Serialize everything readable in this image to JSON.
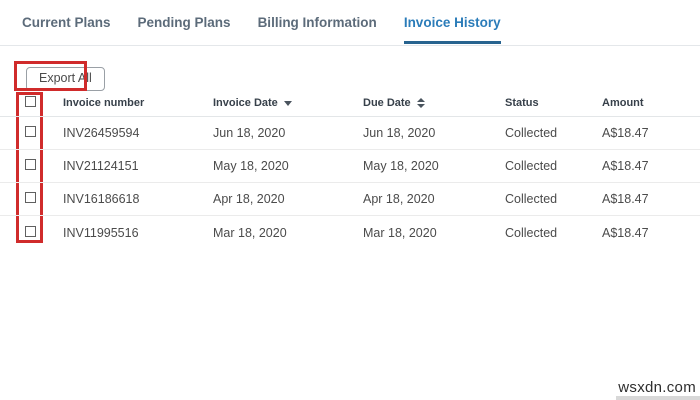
{
  "tabs": {
    "items": [
      {
        "label": "Current Plans",
        "active": false
      },
      {
        "label": "Pending Plans",
        "active": false
      },
      {
        "label": "Billing Information",
        "active": false
      },
      {
        "label": "Invoice History",
        "active": true
      }
    ]
  },
  "toolbar": {
    "export_all_label": "Export All"
  },
  "invoice_table": {
    "headers": {
      "invoice_number": "Invoice number",
      "invoice_date": "Invoice Date",
      "due_date": "Due Date",
      "status": "Status",
      "amount": "Amount"
    },
    "sort_state": {
      "invoice_date": "descending",
      "due_date": "unsorted-both-arrows"
    },
    "rows": [
      {
        "invoice_number": "INV26459594",
        "invoice_date": "Jun 18, 2020",
        "due_date": "Jun 18, 2020",
        "status": "Collected",
        "amount": "A$18.47",
        "selected": false
      },
      {
        "invoice_number": "INV21124151",
        "invoice_date": "May 18, 2020",
        "due_date": "May 18, 2020",
        "status": "Collected",
        "amount": "A$18.47",
        "selected": false
      },
      {
        "invoice_number": "INV16186618",
        "invoice_date": "Apr 18, 2020",
        "due_date": "Apr 18, 2020",
        "status": "Collected",
        "amount": "A$18.47",
        "selected": false
      },
      {
        "invoice_number": "INV11995516",
        "invoice_date": "Mar 18, 2020",
        "due_date": "Mar 18, 2020",
        "status": "Collected",
        "amount": "A$18.47",
        "selected": false
      }
    ]
  },
  "annotations": {
    "highlight_color": "#d02b2b",
    "highlighted_elements": [
      "export-all-button",
      "checkbox-column"
    ]
  },
  "watermark": {
    "text": "wsxdn.com"
  },
  "colors": {
    "active_tab": "#2b7cb9",
    "inactive_tab": "#5c6b7a",
    "tab_underline": "#27638f",
    "row_divider": "#ebebeb",
    "annotation_red": "#d02b2b"
  }
}
